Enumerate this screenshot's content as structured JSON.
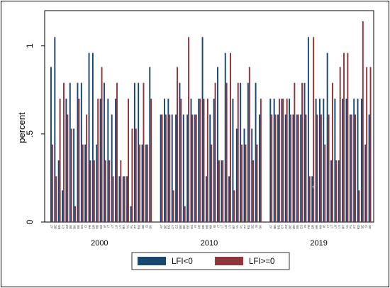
{
  "chart_data": {
    "type": "bar",
    "ylabel": "percent",
    "ylim": [
      0,
      1.2
    ],
    "yticks": [
      "0",
      ".5",
      "1"
    ],
    "ytick_values": [
      0,
      0.5,
      1
    ],
    "grid": false,
    "legend_position": "bottom",
    "colors": {
      "LFI<0": "#1a476f",
      "LFI>=0": "#90353b",
      "axis": "#000000",
      "frame": "#000000"
    },
    "series": [
      {
        "name": "LFI<0",
        "color": "#1a476f"
      },
      {
        "name": "LFI>=0",
        "color": "#90353b"
      }
    ],
    "panels": [
      {
        "label": "2000",
        "categories": [
          "AT",
          "BE",
          "BG",
          "CY",
          "CZ",
          "DE",
          "DK",
          "EE",
          "ES",
          "FI",
          "FR",
          "GR",
          "HR",
          "HU",
          "IE",
          "IT",
          "LT",
          "LU",
          "LV",
          "MT",
          "NL",
          "PL",
          "PT",
          "RO",
          "SE",
          "SI",
          "SK"
        ],
        "LFI<0": [
          0.88,
          1.05,
          0.35,
          0.18,
          0.7,
          0.79,
          0.53,
          0.79,
          0.79,
          0.44,
          0.96,
          0.96,
          0.44,
          0.7,
          0.79,
          0.7,
          0.61,
          0.7,
          0.26,
          0.26,
          0.26,
          0.09,
          0.79,
          0.79,
          0.44,
          0.44,
          0.88
        ],
        "LFI>=0": [
          0.44,
          0.26,
          0.7,
          0.79,
          0.61,
          0.53,
          0.09,
          0.7,
          0.44,
          0.61,
          0.35,
          0.35,
          0.7,
          0.88,
          0.35,
          0.35,
          0.26,
          0.79,
          0.35,
          0.26,
          0.7,
          0.53,
          0.53,
          0.44,
          0.79,
          0.44,
          0.7
        ]
      },
      {
        "label": "2010",
        "categories": [
          "AT",
          "BE",
          "BG",
          "CY",
          "CZ",
          "DE",
          "DK",
          "EE",
          "ES",
          "FI",
          "FR",
          "GR",
          "HR",
          "HU",
          "IE",
          "IT",
          "LT",
          "LU",
          "LV",
          "MT",
          "NL",
          "PL",
          "PT",
          "RO",
          "SE",
          "SI",
          "SK"
        ],
        "LFI<0": [
          0.61,
          0.7,
          0.7,
          0.61,
          0.61,
          0.79,
          0.61,
          0.61,
          0.7,
          0.61,
          0.7,
          1.05,
          0.26,
          0.61,
          0.7,
          0.88,
          0.35,
          0.96,
          0.26,
          0.7,
          0.53,
          0.79,
          0.53,
          0.79,
          0.53,
          0.79,
          0.61
        ],
        "LFI>=0": [
          0.61,
          0.61,
          0.61,
          0.18,
          0.88,
          0.7,
          0.09,
          1.05,
          0.61,
          0.61,
          0.7,
          0.7,
          0.7,
          0.44,
          0.79,
          0.35,
          0.35,
          0.79,
          0.96,
          0.18,
          0.79,
          0.44,
          0.44,
          0.88,
          0.35,
          0.44,
          0.7
        ]
      },
      {
        "label": "2019",
        "categories": [
          "AT",
          "BE",
          "BG",
          "CY",
          "CZ",
          "DE",
          "DK",
          "EE",
          "ES",
          "FI",
          "FR",
          "GR",
          "HR",
          "HU",
          "IE",
          "IT",
          "LT",
          "LU",
          "LV",
          "MT",
          "NL",
          "PL",
          "PT",
          "RO",
          "SE",
          "SI",
          "SK"
        ],
        "LFI<0": [
          0.7,
          0.7,
          0.61,
          0.7,
          0.61,
          0.7,
          0.61,
          0.61,
          0.61,
          0.79,
          1.05,
          0.26,
          0.7,
          0.7,
          0.7,
          0.96,
          0.35,
          0.7,
          0.35,
          0.7,
          0.7,
          0.61,
          0.7,
          0.7,
          0.7,
          0.44,
          0.61
        ],
        "LFI>=0": [
          0.61,
          0.61,
          0.7,
          0.7,
          0.7,
          0.61,
          0.79,
          0.61,
          0.79,
          0.61,
          0.26,
          1.05,
          0.61,
          0.61,
          0.44,
          0.61,
          0.79,
          0.35,
          0.88,
          0.96,
          0.96,
          0.61,
          0.61,
          0.18,
          1.14,
          0.88,
          0.88
        ]
      }
    ],
    "annotation": "+"
  }
}
